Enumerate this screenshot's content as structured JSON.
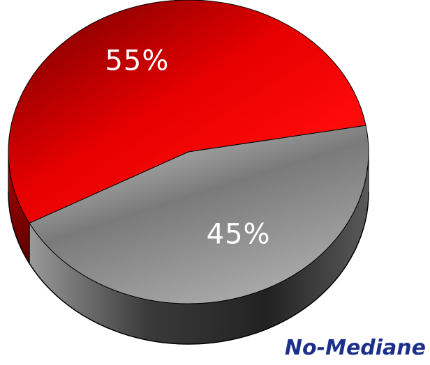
{
  "caption": "No-Mediane",
  "colors": {
    "red": "#e00000",
    "grey": "#8a8a8a",
    "caption": "#1c2f8a"
  },
  "chart_data": {
    "type": "pie",
    "style": "3d",
    "slices": [
      {
        "label": "55%",
        "value": 55,
        "color": "red"
      },
      {
        "label": "45%",
        "value": 45,
        "color": "grey"
      }
    ]
  }
}
